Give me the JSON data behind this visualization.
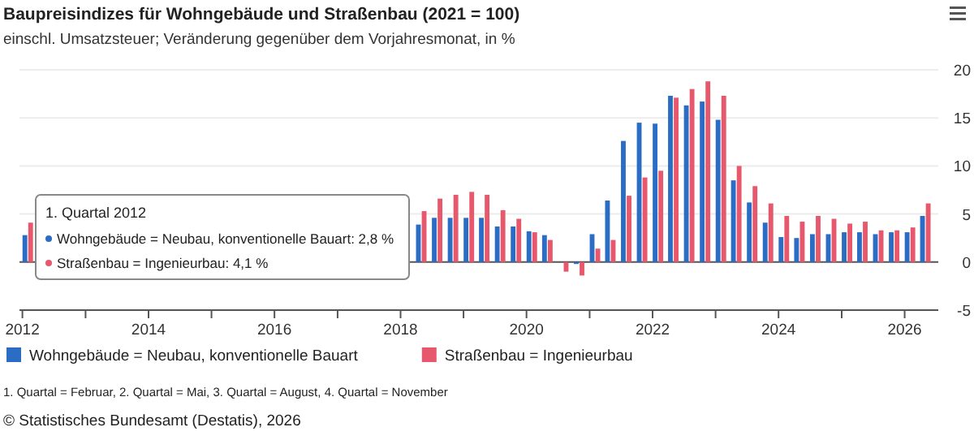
{
  "chart_data": {
    "type": "bar",
    "title": "Baupreisindizes für Wohngebäude und Straßenbau (2021 = 100)",
    "subtitle": "einschl. Umsatzsteuer; Veränderung gegenüber dem Vorjahresmonat, in %",
    "x": [
      "2012-02",
      "2012-05",
      "2012-08",
      "2012-11",
      "2013-02",
      "2013-05",
      "2013-08",
      "2013-11",
      "2014-02",
      "2014-05",
      "2014-08",
      "2014-11",
      "2015-02",
      "2015-05",
      "2015-08",
      "2015-11",
      "2016-02",
      "2016-05",
      "2016-08",
      "2016-11",
      "2017-02",
      "2017-05",
      "2017-08",
      "2017-11",
      "2018-02",
      "2018-05",
      "2018-08",
      "2018-11",
      "2019-02",
      "2019-05",
      "2019-08",
      "2019-11",
      "2020-02",
      "2020-05",
      "2020-08",
      "2020-11",
      "2021-02",
      "2021-05",
      "2021-08",
      "2021-11",
      "2022-02",
      "2022-05",
      "2022-08",
      "2022-11",
      "2023-02",
      "2023-05",
      "2023-08",
      "2023-11",
      "2024-02",
      "2024-05",
      "2024-08",
      "2024-11",
      "2025-02",
      "2025-05",
      "2025-08",
      "2025-11",
      "2026-02",
      "2026-05"
    ],
    "series": [
      {
        "name": "Wohngebäude = Neubau, konventionelle Bauart",
        "color": "#2b6cc4",
        "values": [
          2.8,
          null,
          null,
          null,
          null,
          null,
          null,
          null,
          null,
          null,
          null,
          null,
          null,
          null,
          null,
          null,
          null,
          null,
          null,
          null,
          null,
          null,
          null,
          null,
          null,
          3.9,
          4.6,
          4.6,
          4.6,
          4.6,
          3.7,
          3.7,
          3.2,
          2.8,
          0.0,
          -0.2,
          2.9,
          6.4,
          12.6,
          14.5,
          14.4,
          17.3,
          16.3,
          16.7,
          14.8,
          8.5,
          6.2,
          4.1,
          2.6,
          2.5,
          2.9,
          2.9,
          3.1,
          3.1,
          2.9,
          3.1,
          3.1,
          4.8
        ]
      },
      {
        "name": "Straßenbau = Ingenieurbau",
        "color": "#e8586c",
        "values": [
          4.1,
          null,
          null,
          null,
          null,
          null,
          null,
          null,
          null,
          null,
          null,
          null,
          null,
          null,
          null,
          null,
          null,
          null,
          null,
          null,
          null,
          null,
          null,
          null,
          null,
          5.3,
          6.6,
          7.0,
          7.3,
          7.0,
          5.4,
          4.5,
          3.1,
          2.3,
          -1.0,
          -1.4,
          1.4,
          2.3,
          6.9,
          8.8,
          9.5,
          17.1,
          18.0,
          18.8,
          17.3,
          10.0,
          7.9,
          6.1,
          4.8,
          4.2,
          4.8,
          4.5,
          4.0,
          4.2,
          3.3,
          3.3,
          3.6,
          6.1
        ]
      }
    ],
    "xlim": [
      "2011-12-15",
      "2026-07-15"
    ],
    "xticks": [
      {
        "value": "2012",
        "label": "2012"
      },
      {
        "value": "2013",
        "label": null
      },
      {
        "value": "2014",
        "label": "2014"
      },
      {
        "value": "2015",
        "label": null
      },
      {
        "value": "2016",
        "label": "2016"
      },
      {
        "value": "2017",
        "label": null
      },
      {
        "value": "2018",
        "label": "2018"
      },
      {
        "value": "2019",
        "label": null
      },
      {
        "value": "2020",
        "label": "2020"
      },
      {
        "value": "2021",
        "label": null
      },
      {
        "value": "2022",
        "label": "2022"
      },
      {
        "value": "2023",
        "label": null
      },
      {
        "value": "2024",
        "label": "2024"
      },
      {
        "value": "2025",
        "label": null
      },
      {
        "value": "2026",
        "label": "2026"
      }
    ],
    "ylim": [
      -5,
      20
    ],
    "yticks": [
      -5,
      0,
      5,
      10,
      15,
      20
    ],
    "grid": "y",
    "legend": "bottom",
    "annotations": [
      "1. Quartal 2012",
      "Wohngebäude = Neubau, konventionelle Bauart: 2,8 %",
      "Straßenbau = Ingenieurbau: 4,1 %",
      "1. Quartal = Februar, 2. Quartal = Mai, 3. Quartal = August, 4. Quartal = November",
      "© Statistisches Bundesamt (Destatis), 2026"
    ]
  }
}
